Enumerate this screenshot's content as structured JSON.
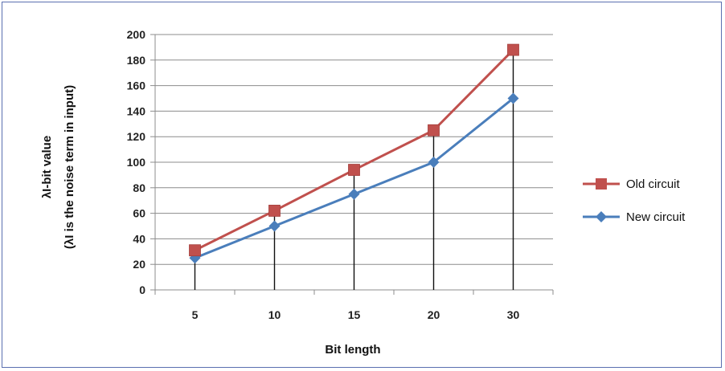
{
  "chart_data": {
    "type": "line",
    "categories": [
      "5",
      "10",
      "15",
      "20",
      "30"
    ],
    "series": [
      {
        "name": "Old circuit",
        "values": [
          31,
          62,
          94,
          125,
          188
        ],
        "color": "#c0504d",
        "marker": "square"
      },
      {
        "name": "New circuit",
        "values": [
          25,
          50,
          75,
          100,
          150
        ],
        "color": "#4a7ebb",
        "marker": "diamond"
      }
    ],
    "xlabel": "Bit length",
    "ylabel_main": "λI-bit value",
    "ylabel_sub": "(λI is the noise term in input)",
    "ylim": [
      0,
      200
    ],
    "yticks": [
      "0",
      "20",
      "40",
      "60",
      "80",
      "100",
      "120",
      "140",
      "160",
      "180",
      "200"
    ],
    "grid": true,
    "drop_lines": true,
    "legend_position": "right"
  }
}
